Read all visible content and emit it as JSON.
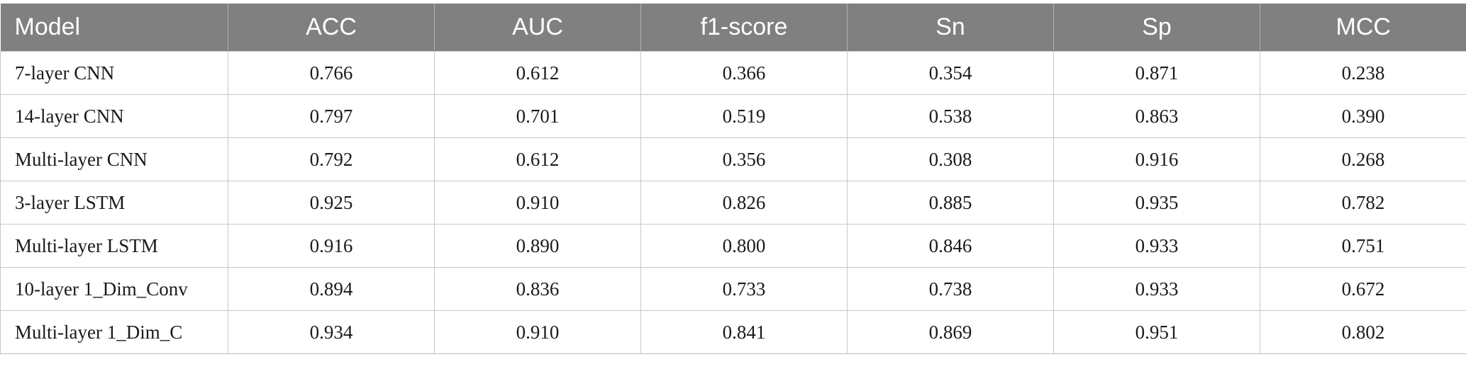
{
  "table": {
    "headers": [
      "Model",
      "ACC",
      "AUC",
      "f1-score",
      "Sn",
      "Sp",
      "MCC"
    ],
    "rows": [
      [
        "7-layer CNN",
        "0.766",
        "0.612",
        "0.366",
        "0.354",
        "0.871",
        "0.238"
      ],
      [
        "14-layer CNN",
        "0.797",
        "0.701",
        "0.519",
        "0.538",
        "0.863",
        "0.390"
      ],
      [
        "Multi-layer CNN",
        "0.792",
        "0.612",
        "0.356",
        "0.308",
        "0.916",
        "0.268"
      ],
      [
        "3-layer LSTM",
        "0.925",
        "0.910",
        "0.826",
        "0.885",
        "0.935",
        "0.782"
      ],
      [
        "Multi-layer LSTM",
        "0.916",
        "0.890",
        "0.800",
        "0.846",
        "0.933",
        "0.751"
      ],
      [
        "10-layer 1_Dim_Conv",
        "0.894",
        "0.836",
        "0.733",
        "0.738",
        "0.933",
        "0.672"
      ],
      [
        "Multi-layer 1_Dim_C",
        "0.934",
        "0.910",
        "0.841",
        "0.869",
        "0.951",
        "0.802"
      ]
    ]
  },
  "colors": {
    "header_bg": "#808080",
    "header_text": "#ffffff",
    "grid_line": "#c8c8c8"
  }
}
